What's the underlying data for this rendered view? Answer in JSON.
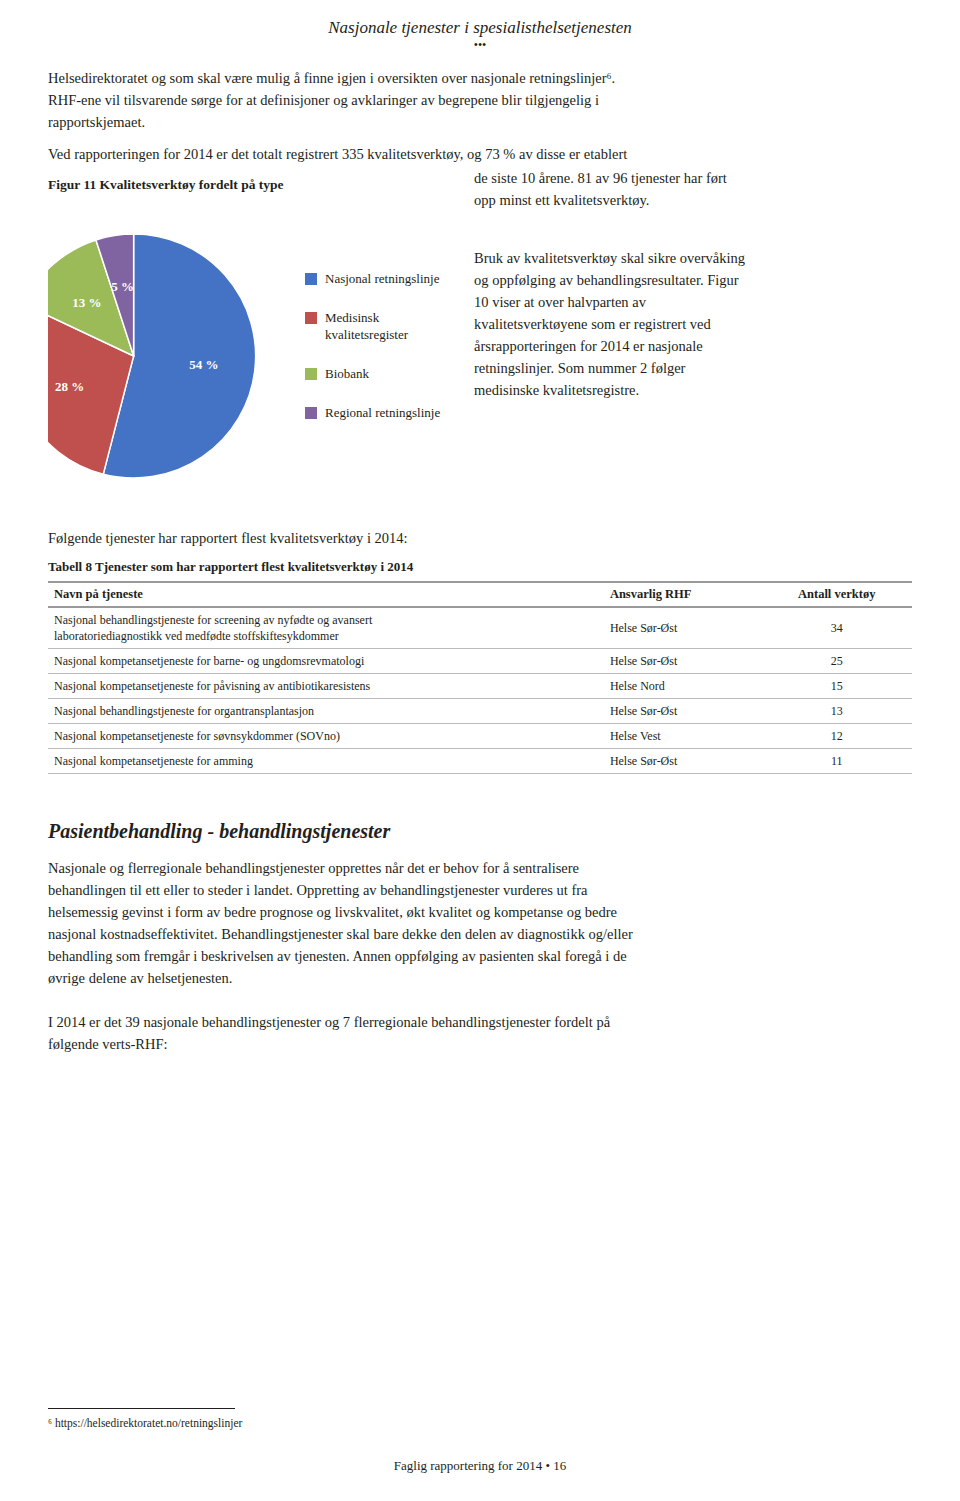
{
  "chart_data": [
    {
      "type": "pie",
      "title": "Figur 11 Kvalitetsverktøy fordelt på type",
      "categories": [
        "Nasjonal retningslinje",
        "Medisinsk\nkvalitetsregister",
        "Biobank",
        "Regional retningslinje"
      ],
      "values": [
        54,
        28,
        13,
        5
      ],
      "value_labels": [
        "54 %",
        "28 %",
        "13 %",
        "5 %"
      ],
      "colors": [
        "#4472c4",
        "#c0504d",
        "#9bbb59",
        "#8064a2"
      ],
      "data_labels": true,
      "legend": "right",
      "annotations": [
        "Nasjonale tjenester i spesialisthelsetjenesten",
        "•••",
        "Helsedirektoratet og som skal være mulig å finne igjen i oversikten over nasjonale retningslinjer⁶.\nRHF-ene vil tilsvarende sørge for at definisjoner og avklaringer av begrepene blir tilgjengelig i\nrapportskjemaet.",
        "Ved rapporteringen for 2014 er det totalt registrert 335 kvalitetsverktøy, og 73 % av disse er etablert",
        "de siste 10 årene. 81 av 96 tjenester har ført\nopp minst ett kvalitetsverktøy.",
        "Bruk av kvalitetsverktøy skal sikre overvåking\nog oppfølging av behandlingsresultater. Figur\n10 viser at over halvparten av\nkvalitetsverktøyene som er registrert ved\nårsrapporteringen for 2014 er nasjonale\nretningslinjer. Som nummer 2 følger\nmedisinske kvalitetsregistre.",
        "Følgende tjenester har rapportert flest kvalitetsverktøy i 2014:",
        "Pasientbehandling - behandlingstjenester",
        "Nasjonale og flerregionale behandlingstjenester opprettes når det er behov for å sentralisere\nbehandlingen til ett eller to steder i landet. Oppretting av behandlingstjenester vurderes ut fra\nhelsemessig gevinst i form av bedre prognose og livskvalitet, økt kvalitet og kompetanse og bedre\nnasjonal kostnadseffektivitet. Behandlingstjenester skal bare dekke den delen av diagnostikk og/eller\nbehandling som fremgår i beskrivelsen av tjenesten. Annen oppfølging av pasienten skal foregå i de\nøvrige delene av helsetjenesten.",
        "I 2014 er det 39 nasjonale behandlingstjenester og 7 flerregionale behandlingstjenester fordelt på\nfølgende verts-RHF:",
        "⁶ https://helsedirektoratet.no/retningslinjer",
        "Faglig rapportering for 2014 • 16"
      ]
    },
    {
      "type": "table",
      "title": "Tabell 8 Tjenester som har rapportert flest kvalitetsverktøy i 2014",
      "columns": [
        "Navn på tjeneste",
        "Ansvarlig RHF",
        "Antall verktøy"
      ],
      "rows": [
        [
          "Nasjonal behandlingstjeneste for screening av nyfødte og avansert\nlaboratoriediagnostikk ved medfødte stoffskiftesykdommer",
          "Helse Sør-Øst",
          34
        ],
        [
          "Nasjonal kompetansetjeneste for barne- og ungdomsrevmatologi",
          "Helse Sør-Øst",
          25
        ],
        [
          "Nasjonal kompetansetjeneste for påvisning av antibiotikaresistens",
          "Helse Nord",
          15
        ],
        [
          "Nasjonal behandlingstjeneste for organtransplantasjon",
          "Helse Sør-Øst",
          13
        ],
        [
          "Nasjonal kompetansetjeneste for søvnsykdommer (SOVno)",
          "Helse Vest",
          12
        ],
        [
          "Nasjonal kompetansetjeneste for amming",
          "Helse Sør-Øst",
          11
        ]
      ]
    }
  ]
}
